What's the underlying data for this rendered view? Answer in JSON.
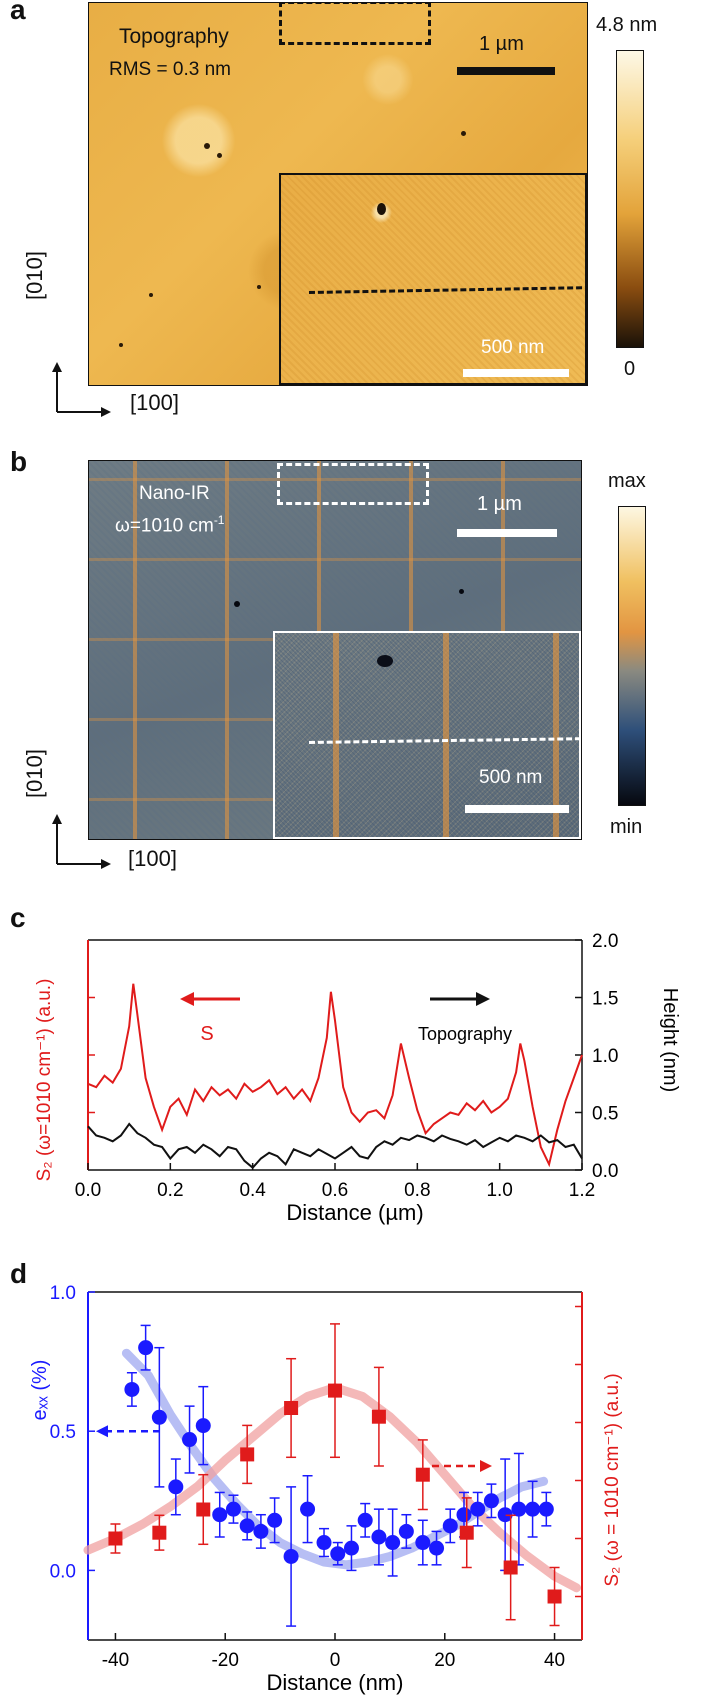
{
  "panels": {
    "a": {
      "label": "a",
      "title": "Topography",
      "rms": "RMS = 0.3 nm",
      "scale_main": "1 µm",
      "scale_inset": "500 nm",
      "colorbar_max": "4.8 nm",
      "colorbar_min": "0",
      "axis_vertical": "[010]",
      "axis_horizontal": "[100]",
      "colors": {
        "dark": "#1a1208",
        "mid": "#e3a33a",
        "light": "#fdf8e6"
      }
    },
    "b": {
      "label": "b",
      "title": "Nano-IR",
      "freq_prefix": "ω=1010 cm",
      "freq_sup": "-1",
      "scale_main": "1 µm",
      "scale_inset": "500 nm",
      "colorbar_max": "max",
      "colorbar_min": "min",
      "axis_vertical": "[010]",
      "axis_horizontal": "[100]",
      "colors": {
        "dark": "#06080f",
        "blue": "#2e4f7a",
        "orange": "#e29542",
        "light": "#fdf7e2"
      }
    },
    "c": {
      "label": "c"
    },
    "d": {
      "label": "d"
    }
  },
  "chart_data": [
    {
      "type": "line",
      "title": "",
      "xlabel": "Distance (µm)",
      "ylabel_left": "S₂ (ω=1010 cm⁻¹) (a.u.)",
      "ylabel_right": "Height (nm)",
      "xlim": [
        0,
        1.2
      ],
      "ylim_right": [
        0,
        2.0
      ],
      "x_ticks": [
        "0.0",
        "0.2",
        "0.4",
        "0.6",
        "0.8",
        "1.0",
        "1.2"
      ],
      "y_ticks_right": [
        "0.0",
        "0.5",
        "1.0",
        "1.5",
        "2.0"
      ],
      "annotations": {
        "left_arrow": "S",
        "right_arrow": "Topography"
      },
      "series": [
        {
          "name": "S",
          "color": "#e01b1b",
          "axis": "left",
          "x": [
            0.0,
            0.02,
            0.04,
            0.06,
            0.08,
            0.1,
            0.11,
            0.12,
            0.14,
            0.16,
            0.18,
            0.2,
            0.22,
            0.24,
            0.26,
            0.28,
            0.3,
            0.32,
            0.34,
            0.36,
            0.38,
            0.4,
            0.42,
            0.44,
            0.46,
            0.48,
            0.5,
            0.52,
            0.54,
            0.56,
            0.58,
            0.59,
            0.6,
            0.62,
            0.64,
            0.66,
            0.68,
            0.7,
            0.72,
            0.74,
            0.76,
            0.78,
            0.8,
            0.82,
            0.84,
            0.86,
            0.88,
            0.9,
            0.92,
            0.94,
            0.96,
            0.98,
            1.0,
            1.02,
            1.04,
            1.05,
            1.06,
            1.08,
            1.1,
            1.12,
            1.14,
            1.16,
            1.18,
            1.2
          ],
          "values": [
            0.75,
            0.72,
            0.82,
            0.76,
            0.88,
            1.25,
            1.62,
            1.35,
            0.8,
            0.55,
            0.35,
            0.55,
            0.62,
            0.48,
            0.7,
            0.6,
            0.72,
            0.65,
            0.7,
            0.62,
            0.75,
            0.68,
            0.72,
            0.78,
            0.66,
            0.72,
            0.62,
            0.7,
            0.6,
            0.8,
            1.15,
            1.55,
            1.3,
            0.72,
            0.5,
            0.42,
            0.5,
            0.52,
            0.45,
            0.65,
            1.1,
            0.8,
            0.52,
            0.32,
            0.4,
            0.45,
            0.5,
            0.48,
            0.58,
            0.52,
            0.6,
            0.5,
            0.55,
            0.62,
            0.85,
            1.1,
            0.95,
            0.55,
            0.2,
            0.05,
            0.35,
            0.6,
            0.8,
            1.0
          ]
        },
        {
          "name": "Topography",
          "color": "#111111",
          "axis": "right",
          "x": [
            0.0,
            0.02,
            0.04,
            0.06,
            0.08,
            0.1,
            0.12,
            0.14,
            0.16,
            0.18,
            0.2,
            0.22,
            0.24,
            0.26,
            0.28,
            0.3,
            0.32,
            0.34,
            0.36,
            0.38,
            0.4,
            0.42,
            0.44,
            0.46,
            0.48,
            0.5,
            0.52,
            0.54,
            0.56,
            0.58,
            0.6,
            0.62,
            0.64,
            0.66,
            0.68,
            0.7,
            0.72,
            0.74,
            0.76,
            0.78,
            0.8,
            0.82,
            0.84,
            0.86,
            0.88,
            0.9,
            0.92,
            0.94,
            0.96,
            0.98,
            1.0,
            1.02,
            1.04,
            1.06,
            1.08,
            1.1,
            1.12,
            1.14,
            1.16,
            1.18,
            1.2
          ],
          "values": [
            0.38,
            0.3,
            0.28,
            0.25,
            0.3,
            0.4,
            0.32,
            0.28,
            0.22,
            0.2,
            0.1,
            0.18,
            0.2,
            0.15,
            0.22,
            0.18,
            0.12,
            0.2,
            0.18,
            0.08,
            0.02,
            0.1,
            0.15,
            0.12,
            0.05,
            0.18,
            0.15,
            0.12,
            0.18,
            0.14,
            0.1,
            0.15,
            0.2,
            0.12,
            0.1,
            0.2,
            0.25,
            0.22,
            0.28,
            0.26,
            0.3,
            0.28,
            0.25,
            0.3,
            0.27,
            0.25,
            0.22,
            0.26,
            0.2,
            0.24,
            0.28,
            0.25,
            0.3,
            0.28,
            0.25,
            0.3,
            0.24,
            0.26,
            0.2,
            0.22,
            0.1
          ]
        }
      ]
    },
    {
      "type": "scatter",
      "title": "",
      "xlabel": "Distance (nm)",
      "ylabel_left": "eₓₓ (%)",
      "ylabel_right": "S₂ (ω = 1010 cm⁻¹) (a.u.)",
      "xlim": [
        -45,
        45
      ],
      "ylim_left": [
        -0.25,
        1.0
      ],
      "x_ticks": [
        "-40",
        "-20",
        "0",
        "20",
        "40"
      ],
      "y_ticks_left": [
        "0.0",
        "0.5",
        "1.0"
      ],
      "series": [
        {
          "name": "exx",
          "color": "#1a1aff",
          "marker": "circle",
          "axis": "left",
          "x": [
            -37,
            -34.5,
            -32,
            -29,
            -26.5,
            -24,
            -21,
            -18.5,
            -16,
            -13.5,
            -11,
            -8,
            -5,
            -2,
            0.5,
            3,
            5.5,
            8,
            10.5,
            13,
            16,
            18.5,
            21,
            23.5,
            26,
            28.5,
            31,
            33.5,
            36,
            38.5
          ],
          "values": [
            0.65,
            0.8,
            0.55,
            0.3,
            0.47,
            0.52,
            0.2,
            0.22,
            0.16,
            0.14,
            0.18,
            0.05,
            0.22,
            0.1,
            0.06,
            0.08,
            0.18,
            0.12,
            0.1,
            0.14,
            0.1,
            0.08,
            0.16,
            0.2,
            0.22,
            0.25,
            0.2,
            0.22,
            0.22,
            0.22
          ],
          "errors": [
            0.06,
            0.08,
            0.25,
            0.1,
            0.12,
            0.14,
            0.08,
            0.05,
            0.05,
            0.06,
            0.08,
            0.25,
            0.12,
            0.05,
            0.04,
            0.08,
            0.06,
            0.1,
            0.12,
            0.06,
            0.08,
            0.06,
            0.06,
            0.08,
            0.06,
            0.06,
            0.2,
            0.2,
            0.1,
            0.06
          ]
        },
        {
          "name": "S2",
          "color": "#e01b1b",
          "marker": "square",
          "axis": "right",
          "x": [
            -40,
            -32,
            -24,
            -16,
            -8,
            0,
            8,
            16,
            24,
            32,
            40
          ],
          "values": [
            0.2,
            0.22,
            0.3,
            0.49,
            0.65,
            0.71,
            0.62,
            0.42,
            0.22,
            0.1,
            0.0
          ],
          "errors": [
            0.05,
            0.06,
            0.12,
            0.1,
            0.17,
            0.23,
            0.17,
            0.12,
            0.12,
            0.18,
            0.1
          ]
        }
      ],
      "fits": [
        {
          "name": "exx fit",
          "color": "#9fa8f0",
          "x": [
            -38,
            -34,
            -30,
            -26,
            -22,
            -18,
            -14,
            -10,
            -6,
            -2,
            2,
            6,
            10,
            14,
            18,
            22,
            26,
            30,
            34,
            38
          ],
          "values": [
            0.78,
            0.7,
            0.56,
            0.44,
            0.33,
            0.24,
            0.16,
            0.1,
            0.06,
            0.03,
            0.02,
            0.03,
            0.05,
            0.08,
            0.12,
            0.16,
            0.21,
            0.26,
            0.3,
            0.32
          ]
        },
        {
          "name": "S2 fit",
          "color": "#f0a0a0",
          "x": [
            -45,
            -40,
            -35,
            -30,
            -25,
            -20,
            -15,
            -10,
            -5,
            0,
            5,
            10,
            15,
            20,
            25,
            30,
            35,
            40,
            44
          ],
          "values": [
            0.16,
            0.2,
            0.25,
            0.31,
            0.38,
            0.47,
            0.55,
            0.63,
            0.69,
            0.72,
            0.69,
            0.62,
            0.53,
            0.42,
            0.31,
            0.22,
            0.14,
            0.07,
            0.03
          ]
        }
      ]
    }
  ]
}
